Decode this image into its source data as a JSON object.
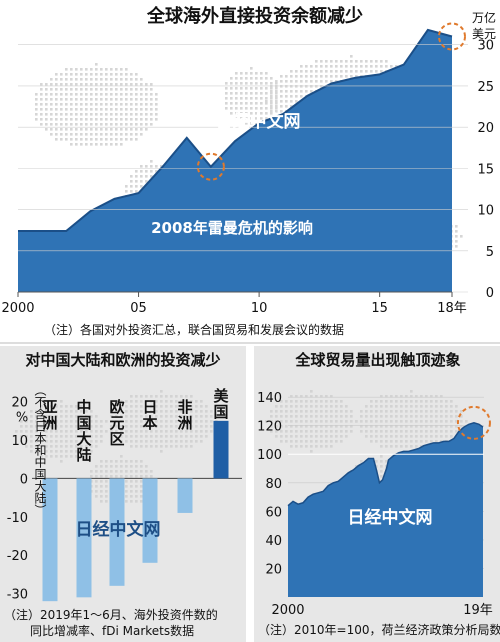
{
  "watermark": "日经中文网",
  "colors": {
    "area_fill": "#2f73b5",
    "area_line": "#1b4f88",
    "bar_light": "#8fc0e6",
    "bar_dark": "#1f5ea5",
    "panel_bg": "#e7e7e7",
    "highlight": "#e07a2d"
  },
  "chart_data": [
    {
      "type": "area",
      "title": "全球海外直接投资余额减少",
      "unit_label": [
        "万亿",
        "美元"
      ],
      "annotation": "2008年雷曼危机的影响",
      "note": "（注）各国对外投资汇总，联合国贸易和发展会议的数据",
      "x": [
        2000,
        2001,
        2002,
        2003,
        2004,
        2005,
        2006,
        2007,
        2008,
        2009,
        2010,
        2011,
        2012,
        2013,
        2014,
        2015,
        2016,
        2017,
        2018
      ],
      "x_ticks": [
        2000,
        2005,
        2010,
        2015,
        2018
      ],
      "x_tick_labels": [
        "2000",
        "05",
        "10",
        "15",
        "18年"
      ],
      "values": [
        7.4,
        7.4,
        7.4,
        9.8,
        11.3,
        12.0,
        15.2,
        18.7,
        15.2,
        18.3,
        20.5,
        21.6,
        23.8,
        25.3,
        26.0,
        26.4,
        27.6,
        31.8,
        31.0
      ],
      "ylim": [
        0,
        33
      ],
      "y_ticks": [
        0,
        5,
        10,
        15,
        20,
        25,
        30
      ],
      "highlight_points": [
        2008,
        2018
      ]
    },
    {
      "type": "bar",
      "title": "对中国大陆和欧洲的投资减少",
      "ylabel": "%",
      "side_label": "（不含日本和中国大陆）",
      "categories": [
        "亚洲",
        "中国大陆",
        "欧元区",
        "日本",
        "非洲",
        "美国"
      ],
      "values": [
        -32,
        -31,
        -28,
        -22,
        -9,
        15
      ],
      "ylim": [
        -33,
        22
      ],
      "y_ticks": [
        -30,
        -20,
        -10,
        0,
        10,
        20
      ],
      "y_tick_labels": [
        "-30",
        "-20",
        "-10",
        "0",
        "10",
        "20"
      ],
      "note": [
        "（注）2019年1～6月、海外投资件数的",
        "同比增减率、fDi Markets数据"
      ]
    },
    {
      "type": "area",
      "title": "全球贸易量出现触顶迹象",
      "x_tick_labels": [
        "2000",
        "19年"
      ],
      "xlim": [
        2000,
        2019.5
      ],
      "ylim": [
        0,
        145
      ],
      "y_ticks": [
        0,
        20,
        40,
        60,
        80,
        100,
        120,
        140
      ],
      "reference_line": 100,
      "x": [
        2000.0,
        2000.5,
        2001.0,
        2001.5,
        2002.0,
        2002.5,
        2003.0,
        2003.5,
        2004.0,
        2004.5,
        2005.0,
        2005.5,
        2006.0,
        2006.5,
        2007.0,
        2007.5,
        2008.0,
        2008.5,
        2008.8,
        2009.1,
        2009.4,
        2009.8,
        2010.0,
        2010.5,
        2011.0,
        2011.5,
        2012.0,
        2012.5,
        2013.0,
        2013.5,
        2014.0,
        2014.5,
        2015.0,
        2015.5,
        2016.0,
        2016.5,
        2017.0,
        2017.5,
        2018.0,
        2018.5,
        2019.0,
        2019.4
      ],
      "values": [
        64,
        67,
        65,
        66,
        70,
        72,
        73,
        74,
        78,
        80,
        81,
        84,
        87,
        89,
        92,
        94,
        97,
        97,
        89,
        80,
        82,
        90,
        96,
        99,
        101,
        102,
        102,
        103,
        104,
        106,
        107,
        108,
        108,
        109,
        109,
        111,
        116,
        119,
        121,
        122,
        121,
        119
      ],
      "note": "（注）2010年=100，荷兰经济政策分析局数据"
    }
  ]
}
